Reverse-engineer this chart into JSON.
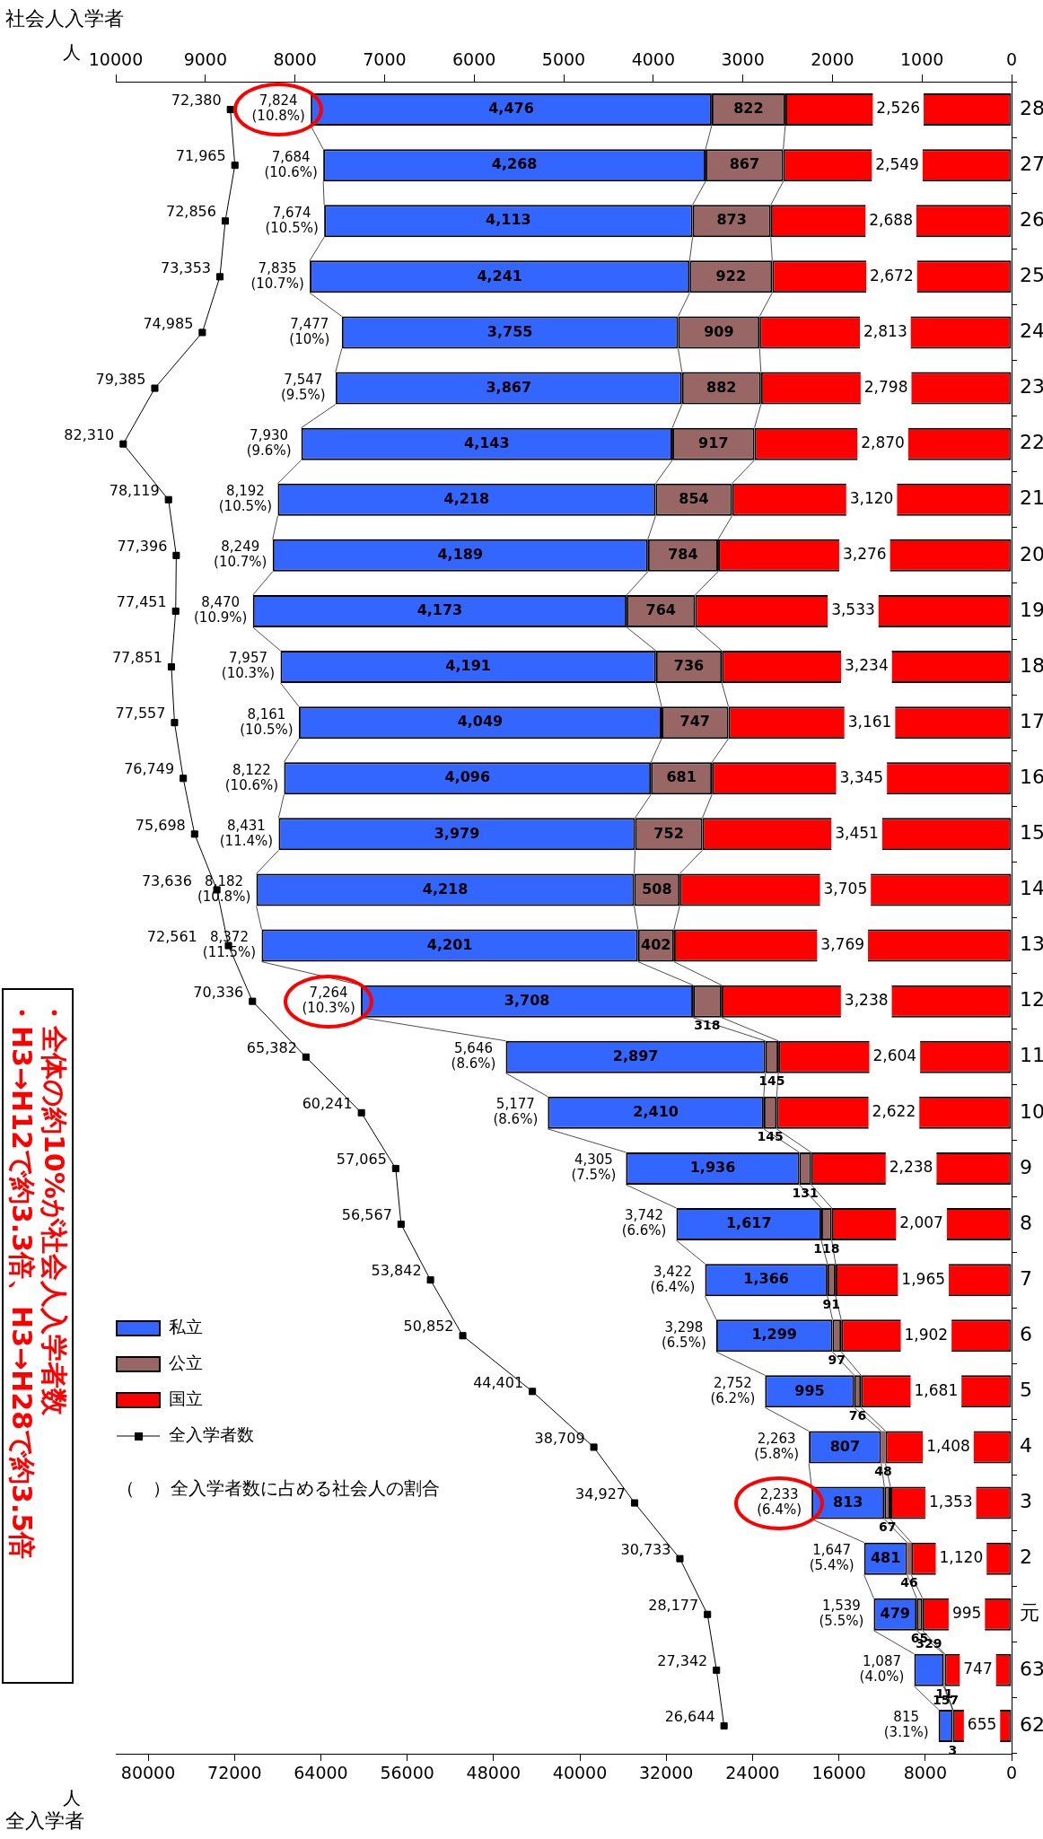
{
  "chart_data": {
    "type": "bar",
    "orientation": "horizontal",
    "title": "・H3→H12で約3.3倍、H3→H28で約3.5倍",
    "subtitle": "・全体の約10%が社会人入学者数",
    "xlabel": "全入学者",
    "x2label": "社会人入学者",
    "annotations": [
      "人",
      "人",
      "（　）全入学者数に占める社会人の割合"
    ],
    "categories": [
      "28",
      "27",
      "26",
      "25",
      "24",
      "23",
      "22",
      "21",
      "20",
      "19",
      "18",
      "17",
      "16",
      "15",
      "14",
      "13",
      "12",
      "11",
      "10",
      "9",
      "8",
      "7",
      "6",
      "5",
      "4",
      "3",
      "2",
      "元",
      "63",
      "62"
    ],
    "series": [
      {
        "name": "国立",
        "color": "#ff0000",
        "axis": "x2",
        "values": [
          2526,
          2549,
          2688,
          2672,
          2813,
          2798,
          2870,
          3120,
          3276,
          3533,
          3234,
          3161,
          3345,
          3451,
          3705,
          3769,
          3238,
          2604,
          2622,
          2238,
          2007,
          1965,
          1902,
          1681,
          1408,
          1353,
          1120,
          995,
          747,
          655
        ],
        "value_labels": [
          "2,526",
          "2,549",
          "2,688",
          "2,672",
          "2,813",
          "2,798",
          "2,870",
          "3,120",
          "3,276",
          "3,533",
          "3,234",
          "3,161",
          "3,345",
          "3,451",
          "3,705",
          "3,769",
          "3,238",
          "2,604",
          "2,622",
          "2,238",
          "2,007",
          "1,965",
          "1,902",
          "1,681",
          "1,408",
          "1,353",
          "1,120",
          "995",
          "747",
          "655"
        ]
      },
      {
        "name": "公立",
        "color": "#996666",
        "axis": "x2",
        "values": [
          822,
          867,
          873,
          922,
          909,
          882,
          917,
          854,
          784,
          764,
          736,
          747,
          681,
          752,
          508,
          402,
          318,
          145,
          145,
          131,
          118,
          91,
          97,
          76,
          48,
          67,
          46,
          65,
          11,
          3
        ],
        "value_labels": [
          "822",
          "867",
          "873",
          "922",
          "909",
          "882",
          "917",
          "854",
          "784",
          "764",
          "736",
          "747",
          "681",
          "752",
          "508",
          "402",
          "318",
          "145",
          "145",
          "131",
          "118",
          "91",
          "97",
          "76",
          "48",
          "67",
          "46",
          "65",
          "11",
          "3"
        ]
      },
      {
        "name": "私立",
        "color": "#3366ff",
        "axis": "x2",
        "values": [
          4476,
          4268,
          4113,
          4241,
          3755,
          3867,
          4143,
          4218,
          4189,
          4173,
          4191,
          4049,
          4096,
          3979,
          4218,
          4201,
          3708,
          2897,
          2410,
          1936,
          1617,
          1366,
          1299,
          995,
          807,
          813,
          481,
          479,
          329,
          157
        ],
        "value_labels": [
          "4,476",
          "4,268",
          "4,113",
          "4,241",
          "3,755",
          "3,867",
          "4,143",
          "4,218",
          "4,189",
          "4,173",
          "4,191",
          "4,049",
          "4,096",
          "3,979",
          "4,218",
          "4,201",
          "3,708",
          "2,897",
          "2,410",
          "1,936",
          "1,617",
          "1,366",
          "1,299",
          "995",
          "807",
          "813",
          "481",
          "479",
          "329",
          "157"
        ]
      },
      {
        "name": "全入学者数",
        "type": "line",
        "color": "#000000",
        "values": [
          72380,
          71965,
          72856,
          73353,
          74985,
          79385,
          82310,
          78119,
          77396,
          77451,
          77851,
          77557,
          76749,
          75698,
          73636,
          72561,
          70336,
          65382,
          60241,
          57065,
          56567,
          53842,
          50852,
          44401,
          38709,
          34927,
          30733,
          28177,
          27342,
          26644
        ],
        "value_labels": [
          "72,380",
          "71,965",
          "72,856",
          "73,353",
          "74,985",
          "79,385",
          "82,310",
          "78,119",
          "77,396",
          "77,451",
          "77,851",
          "77,557",
          "76,749",
          "75,698",
          "73,636",
          "72,561",
          "70,336",
          "65,382",
          "60,241",
          "57,065",
          "56,567",
          "53,842",
          "50,852",
          "44,401",
          "38,709",
          "34,927",
          "30,733",
          "28,177",
          "27,342",
          "26,644"
        ]
      }
    ],
    "totals": [
      "7,824 (10.8%)",
      "7,684 (10.6%)",
      "7,674 (10.5%)",
      "7,835 (10.7%)",
      "7,477 (10%)",
      "7,547 (9.5%)",
      "7,930 (9.6%)",
      "8,192 (10.5%)",
      "8,249 (10.7%)",
      "8,470 (10.9%)",
      "7,957 (10.3%)",
      "8,161 (10.5%)",
      "8,122 (10.6%)",
      "8,431 (11.4%)",
      "8,182 (10.8%)",
      "8,372 (11.5%)",
      "7,264 (10.3%)",
      "5,646 (8.6%)",
      "5,177 (8.6%)",
      "4,305 (7.5%)",
      "3,742 (6.6%)",
      "3,422 (6.4%)",
      "3,298 (6.5%)",
      "2,752 (6.2%)",
      "2,263 (5.8%)",
      "2,233 (6.4%)",
      "1,647 (5.4%)",
      "1,539 (5.5%)",
      "1,087 (4.0%)",
      "815 (3.1%)"
    ],
    "stacked": true,
    "legend": "bottom left",
    "marker": "square",
    "line_style": "solid",
    "xlim": [
      83000,
      0
    ],
    "xticks": [
      80000,
      72000,
      64000,
      56000,
      48000,
      40000,
      32000,
      24000,
      16000,
      8000,
      0
    ],
    "x2lim": [
      10000,
      0
    ],
    "x2ticks": [
      10000,
      9000,
      8000,
      7000,
      6000,
      5000,
      4000,
      3000,
      2000,
      1000,
      0
    ]
  }
}
